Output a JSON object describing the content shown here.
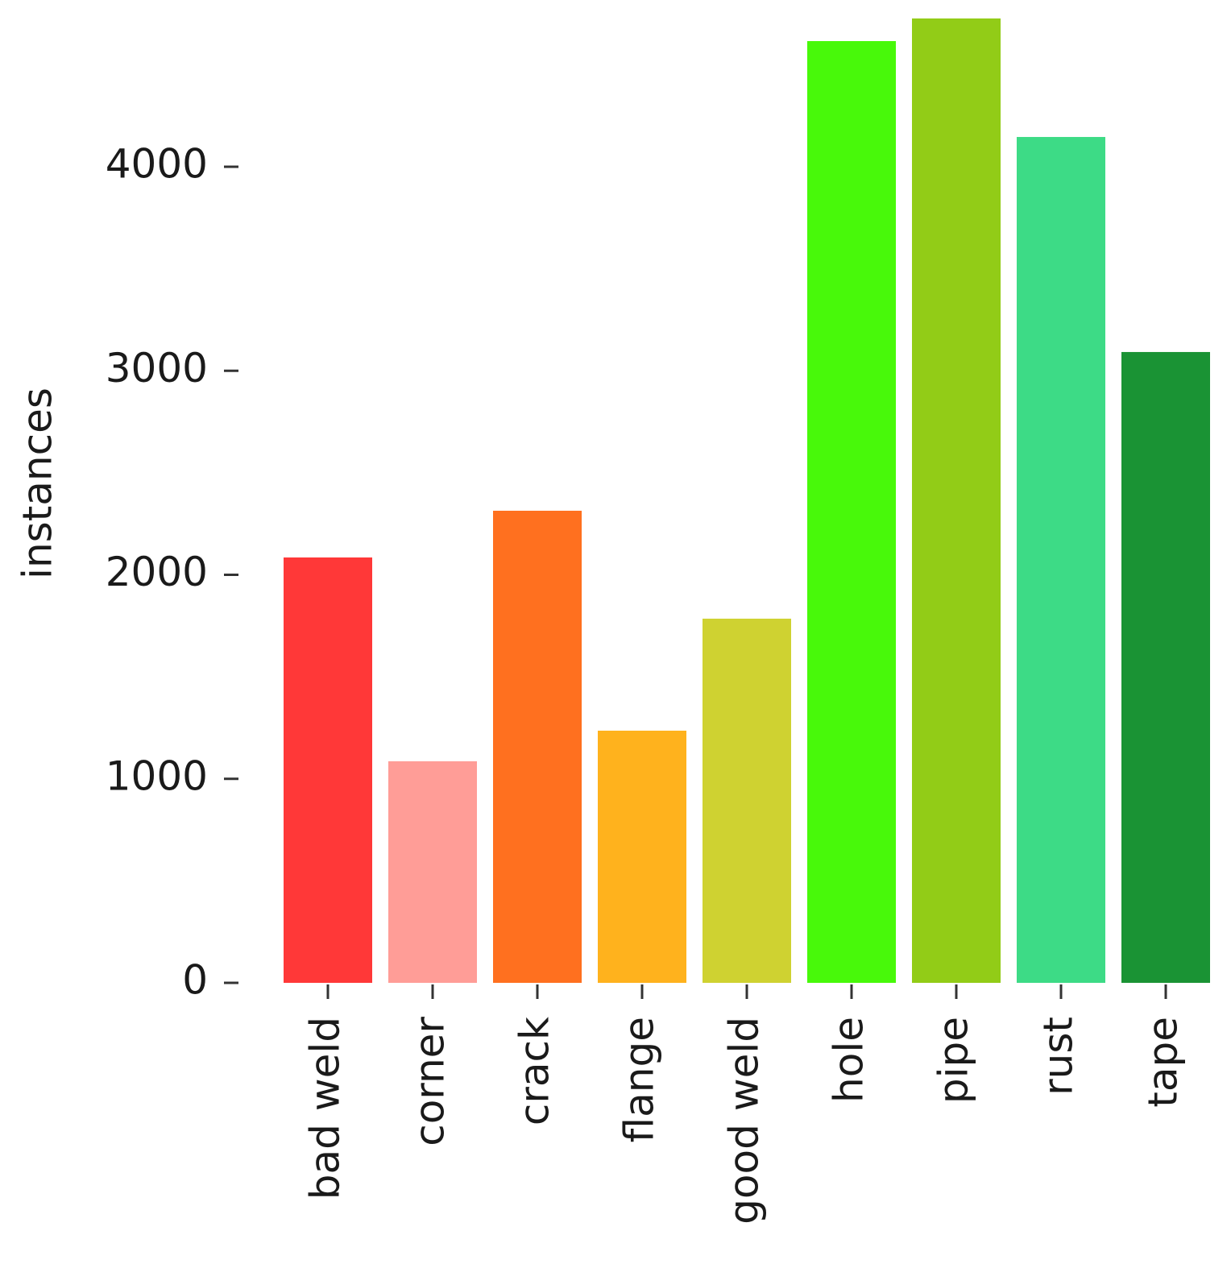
{
  "chart_data": {
    "type": "bar",
    "y_label": "instances",
    "categories": [
      "bad weld",
      "corner",
      "crack",
      "flange",
      "good weld",
      "hole",
      "pipe",
      "rust",
      "tape"
    ],
    "values": [
      2085,
      1086,
      2314,
      1236,
      1785,
      4616,
      4727,
      4146,
      3092
    ],
    "colors": [
      "#ff3838",
      "#ff9d97",
      "#ff701f",
      "#ffb21d",
      "#cfd231",
      "#48f90a",
      "#92cc17",
      "#3ddb86",
      "#1a9334"
    ],
    "ylim": [
      0,
      4800
    ],
    "yticks": [
      0,
      1000,
      2000,
      3000,
      4000
    ],
    "grid": false
  }
}
